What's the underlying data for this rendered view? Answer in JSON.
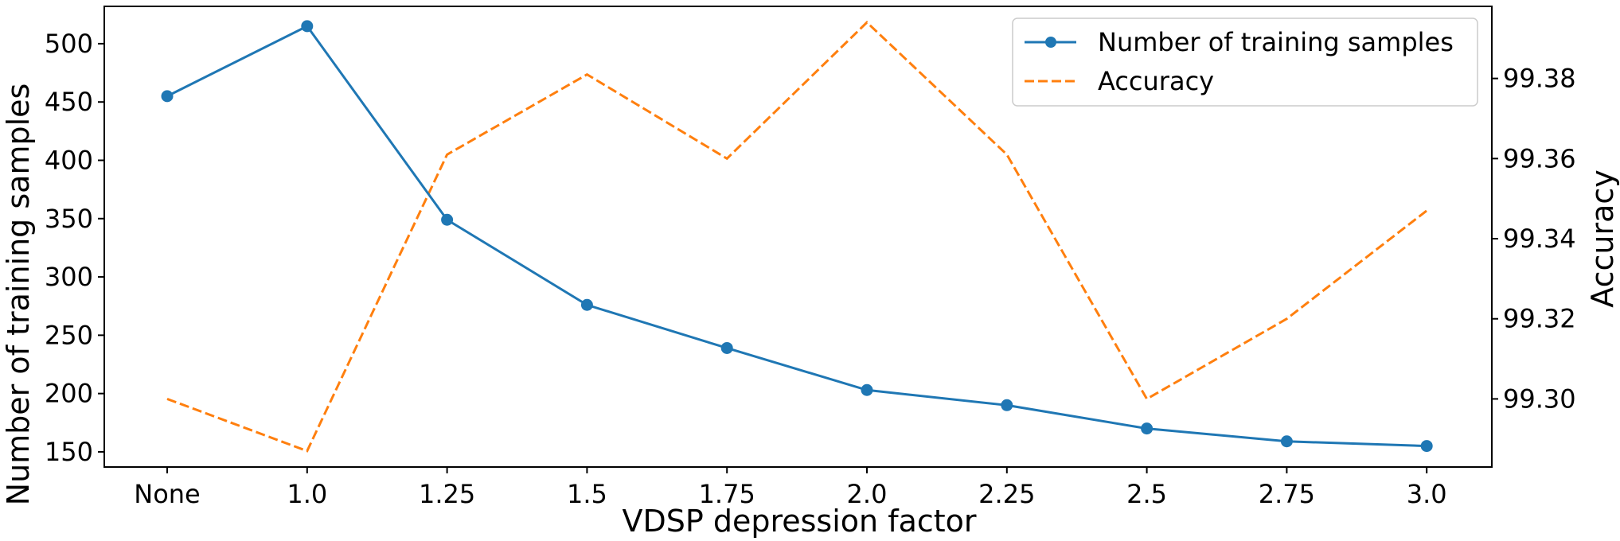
{
  "chart_data": {
    "type": "line",
    "categories": [
      "None",
      "1.0",
      "1.25",
      "1.5",
      "1.75",
      "2.0",
      "2.25",
      "2.5",
      "2.75",
      "3.0"
    ],
    "xlabel": "VDSP depression factor",
    "ylabel_left": "Number of training samples",
    "ylabel_right": "Accuracy",
    "ylim_left": [
      137,
      532
    ],
    "ylim_right": [
      99.283,
      99.398
    ],
    "yticks_left": [
      "150",
      "200",
      "250",
      "300",
      "350",
      "400",
      "450",
      "500"
    ],
    "yticks_right": [
      "99.30",
      "99.32",
      "99.34",
      "99.36",
      "99.38"
    ],
    "grid": false,
    "legend_position": "top-right",
    "series": [
      {
        "name": "Number of training samples",
        "axis": "left",
        "style": "solid-with-markers",
        "color": "#1f77b4",
        "values": [
          455,
          515,
          349,
          276,
          239,
          203,
          190,
          170,
          159,
          155
        ]
      },
      {
        "name": "Accuracy",
        "axis": "right",
        "style": "dashed",
        "color": "#ff7f0e",
        "values": [
          99.3,
          99.287,
          99.361,
          99.381,
          99.36,
          99.394,
          99.361,
          99.3,
          99.32,
          99.347
        ]
      }
    ]
  }
}
